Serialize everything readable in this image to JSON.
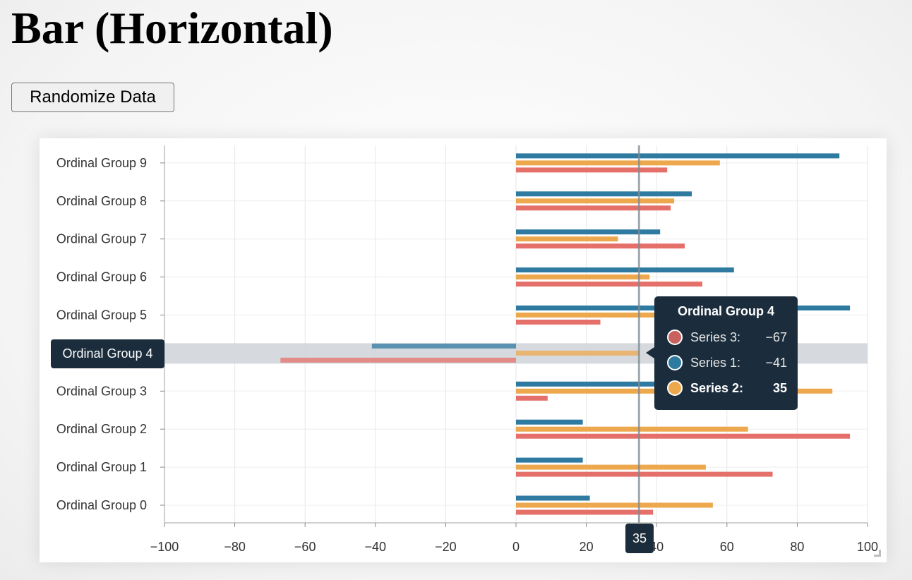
{
  "page": {
    "title": "Bar (Horizontal)"
  },
  "toolbar": {
    "randomize_label": "Randomize Data"
  },
  "colors": {
    "series_1": "#2e7aa0",
    "series_2": "#eda84e",
    "series_3": "#e5706a",
    "highlight_band": "#cfd4d8",
    "tooltip_bg": "#1b2d3c"
  },
  "chart_data": {
    "type": "bar",
    "orientation": "horizontal",
    "categories": [
      "Ordinal Group 0",
      "Ordinal Group 1",
      "Ordinal Group 2",
      "Ordinal Group 3",
      "Ordinal Group 4",
      "Ordinal Group 5",
      "Ordinal Group 6",
      "Ordinal Group 7",
      "Ordinal Group 8",
      "Ordinal Group 9"
    ],
    "series": [
      {
        "name": "Series 1",
        "values": [
          21,
          19,
          19,
          50,
          -41,
          95,
          62,
          41,
          50,
          92
        ]
      },
      {
        "name": "Series 2",
        "values": [
          56,
          54,
          66,
          90,
          35,
          48,
          38,
          29,
          45,
          58
        ]
      },
      {
        "name": "Series 3",
        "values": [
          39,
          73,
          95,
          9,
          -67,
          24,
          53,
          48,
          44,
          43
        ]
      }
    ],
    "xlim": [
      -100,
      100
    ],
    "x_ticks": [
      "−100",
      "−80",
      "−60",
      "−40",
      "−20",
      "0",
      "20",
      "40",
      "60",
      "80",
      "100"
    ],
    "grid": true,
    "highlighted_category": "Ordinal Group 4",
    "crosshair_x": 35
  },
  "crosshair": {
    "y_label": "Ordinal Group 4",
    "x_label": "35"
  },
  "tooltip": {
    "title": "Ordinal Group 4",
    "rows": [
      {
        "name": "Series 3:",
        "value": "−67",
        "color": "#c9625f",
        "bold": false
      },
      {
        "name": "Series 1:",
        "value": "−41",
        "color": "#2e7aa0",
        "bold": false
      },
      {
        "name": "Series 2:",
        "value": "35",
        "color": "#eda84e",
        "bold": true
      }
    ]
  }
}
